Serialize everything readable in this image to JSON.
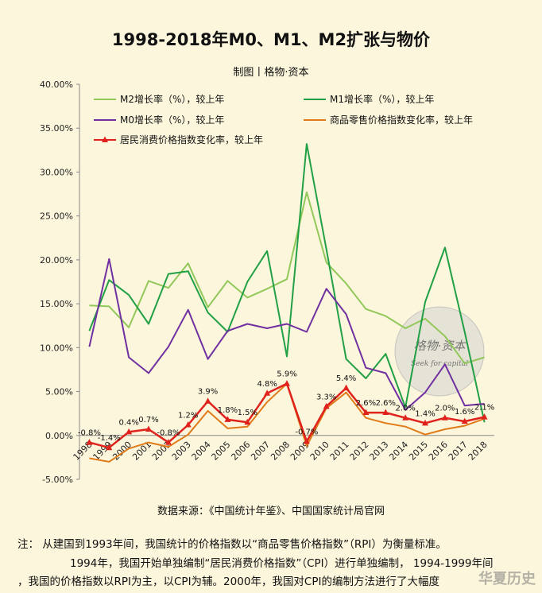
{
  "title": "1998-2018年M0、M1、M2扩张与物价",
  "subtitle": "制图丨格物·资本",
  "source": "数据来源：《中国统计年鉴》、中国国家统计局官网",
  "note": {
    "line1": "注： 从建国到1993年间，我国统计的价格指数以“商品零售价格指数”（RPI）为衡量标准。",
    "line2": "1994年，我国开始单独编制“居民消费价格指数”（CPI）进行单独编制， 1994-1999年间",
    "line3": "，我国的价格指数以RPI为主，以CPI为辅。2000年，我国对CPI的编制方法进行了大幅度"
  },
  "watermark": {
    "seal_text": "格物·资本",
    "seal_sub": "Seek for capital",
    "corner_text": "华夏历史"
  },
  "chart_data": {
    "type": "line",
    "x": [
      "1998",
      "1999",
      "2000",
      "2001",
      "2002",
      "2003",
      "2004",
      "2005",
      "2006",
      "2007",
      "2008",
      "2009",
      "2010",
      "2011",
      "2012",
      "2013",
      "2014",
      "2015",
      "2016",
      "2017",
      "2018"
    ],
    "ylim": [
      -5,
      40
    ],
    "yticks": [
      -5,
      0,
      5,
      10,
      15,
      20,
      25,
      30,
      35,
      40
    ],
    "ytick_labels": [
      "-5.00%",
      "0.00%",
      "5.00%",
      "10.00%",
      "15.00%",
      "20.00%",
      "25.00%",
      "30.00%",
      "35.00%",
      "40.00%"
    ],
    "series": [
      {
        "name": "M2增长率（%），较上年",
        "color": "#92c85a",
        "values": [
          14.8,
          14.7,
          12.3,
          17.6,
          16.8,
          19.6,
          14.6,
          17.6,
          15.7,
          16.7,
          17.8,
          27.7,
          19.7,
          17.3,
          14.4,
          13.6,
          12.2,
          13.3,
          11.3,
          8.2,
          8.9
        ]
      },
      {
        "name": "M1增长率（%），较上年",
        "color": "#21a045",
        "values": [
          11.9,
          17.7,
          16.0,
          12.7,
          18.4,
          18.7,
          14.0,
          11.8,
          17.5,
          21.0,
          9.0,
          33.2,
          21.2,
          8.7,
          6.5,
          9.3,
          3.2,
          15.2,
          21.4,
          11.8,
          1.5
        ]
      },
      {
        "name": "M0增长率（%），较上年",
        "color": "#7030a0",
        "values": [
          10.1,
          20.1,
          8.9,
          7.1,
          10.1,
          14.3,
          8.7,
          11.9,
          12.7,
          12.2,
          12.7,
          11.8,
          16.7,
          13.8,
          7.7,
          7.1,
          2.9,
          4.9,
          8.1,
          3.4,
          3.6
        ]
      },
      {
        "name": "商品零售价格指数变化率，较上年",
        "color": "#e07b1a",
        "values": [
          -2.6,
          -3.0,
          -1.5,
          -0.8,
          -1.3,
          0.1,
          2.8,
          0.8,
          1.0,
          3.8,
          5.9,
          -1.2,
          3.1,
          4.9,
          2.0,
          1.4,
          1.0,
          0.1,
          0.7,
          1.1,
          1.9
        ]
      },
      {
        "name": "居民消费价格指数变化率，较上年",
        "color": "#e0221c",
        "marker": "triangle",
        "values": [
          -0.8,
          -1.4,
          0.4,
          0.7,
          -0.8,
          1.2,
          3.9,
          1.8,
          1.5,
          4.8,
          5.9,
          -0.7,
          3.3,
          5.4,
          2.6,
          2.6,
          2.0,
          1.4,
          2.0,
          1.6,
          2.1
        ],
        "labels": [
          "-0.8%",
          "-1.4%",
          "0.4%",
          "0.7%",
          "-0.8%",
          "1.2%",
          "3.9%",
          "1.8%",
          "1.5%",
          "4.8%",
          "5.9%",
          "-0.7%",
          "3.3%",
          "5.4%",
          "2.6%",
          "2.6%",
          "2.0%",
          "1.4%",
          "2.0%",
          "1.6%",
          "2.1%"
        ]
      }
    ],
    "legend_placement": "top",
    "grid": false
  }
}
